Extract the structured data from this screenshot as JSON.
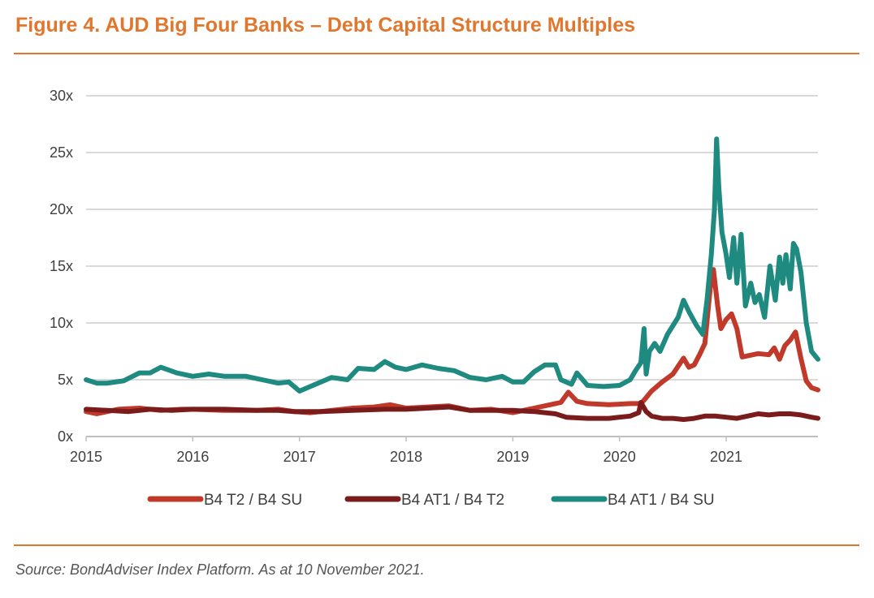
{
  "title": "Figure 4. AUD Big Four Banks – Debt Capital Structure Multiples",
  "source": "Source: BondAdviser Index Platform. As at 10 November 2021.",
  "colors": {
    "accent": "#e0772e",
    "grid": "#d9d9d9",
    "axis_text": "#404040"
  },
  "chart_data": {
    "type": "line",
    "title": "Figure 4. AUD Big Four Banks – Debt Capital Structure Multiples",
    "xlabel": "",
    "ylabel": "",
    "xlim": [
      2015.0,
      2021.86
    ],
    "ylim": [
      0,
      30
    ],
    "x_ticks": [
      2015,
      2016,
      2017,
      2018,
      2019,
      2020,
      2021
    ],
    "x_tick_labels": [
      "2015",
      "2016",
      "2017",
      "2018",
      "2019",
      "2020",
      "2021"
    ],
    "y_ticks": [
      0,
      5,
      10,
      15,
      20,
      25,
      30
    ],
    "y_tick_labels": [
      "0x",
      "5x",
      "10x",
      "15x",
      "20x",
      "25x",
      "30x"
    ],
    "grid": true,
    "legend_position": "bottom",
    "series": [
      {
        "name": "B4 T2 / B4 SU",
        "color": "#c0392b",
        "x": [
          2015.0,
          2015.1,
          2015.2,
          2015.3,
          2015.5,
          2015.7,
          2015.9,
          2016.0,
          2016.3,
          2016.6,
          2016.8,
          2016.95,
          2017.1,
          2017.3,
          2017.5,
          2017.7,
          2017.85,
          2018.0,
          2018.2,
          2018.4,
          2018.6,
          2018.8,
          2019.0,
          2019.2,
          2019.35,
          2019.45,
          2019.52,
          2019.6,
          2019.7,
          2019.9,
          2020.1,
          2020.2,
          2020.23,
          2020.3,
          2020.4,
          2020.5,
          2020.6,
          2020.65,
          2020.7,
          2020.75,
          2020.8,
          2020.85,
          2020.88,
          2020.92,
          2020.95,
          2021.0,
          2021.05,
          2021.1,
          2021.15,
          2021.2,
          2021.3,
          2021.4,
          2021.45,
          2021.5,
          2021.55,
          2021.6,
          2021.65,
          2021.7,
          2021.75,
          2021.8,
          2021.86
        ],
        "values": [
          2.2,
          2.0,
          2.2,
          2.4,
          2.5,
          2.3,
          2.4,
          2.4,
          2.3,
          2.3,
          2.4,
          2.2,
          2.1,
          2.3,
          2.5,
          2.6,
          2.8,
          2.5,
          2.6,
          2.7,
          2.3,
          2.4,
          2.1,
          2.5,
          2.8,
          3.0,
          3.9,
          3.1,
          2.9,
          2.8,
          2.9,
          2.9,
          3.2,
          4.0,
          4.8,
          5.5,
          6.9,
          6.1,
          6.3,
          7.2,
          8.2,
          13.0,
          14.7,
          11.5,
          9.5,
          10.3,
          10.8,
          9.5,
          7.0,
          7.1,
          7.3,
          7.2,
          7.8,
          6.8,
          8.0,
          8.5,
          9.2,
          6.9,
          4.9,
          4.3,
          4.1
        ]
      },
      {
        "name": "B4 AT1 / B4 T2",
        "color": "#7b1c1c",
        "x": [
          2015.0,
          2015.2,
          2015.4,
          2015.6,
          2015.8,
          2016.0,
          2016.3,
          2016.6,
          2016.8,
          2016.95,
          2017.2,
          2017.5,
          2017.8,
          2018.0,
          2018.2,
          2018.4,
          2018.6,
          2018.8,
          2019.0,
          2019.2,
          2019.4,
          2019.5,
          2019.7,
          2019.9,
          2020.1,
          2020.18,
          2020.2,
          2020.25,
          2020.3,
          2020.4,
          2020.5,
          2020.6,
          2020.7,
          2020.8,
          2020.9,
          2021.0,
          2021.1,
          2021.2,
          2021.3,
          2021.4,
          2021.5,
          2021.6,
          2021.7,
          2021.8,
          2021.86
        ],
        "values": [
          2.4,
          2.3,
          2.2,
          2.4,
          2.3,
          2.4,
          2.4,
          2.3,
          2.3,
          2.2,
          2.2,
          2.3,
          2.4,
          2.4,
          2.5,
          2.6,
          2.3,
          2.3,
          2.3,
          2.2,
          2.0,
          1.7,
          1.6,
          1.6,
          1.8,
          2.1,
          3.0,
          2.2,
          1.8,
          1.6,
          1.6,
          1.5,
          1.6,
          1.8,
          1.8,
          1.7,
          1.6,
          1.8,
          2.0,
          1.9,
          2.0,
          2.0,
          1.9,
          1.7,
          1.6
        ]
      },
      {
        "name": "B4 AT1 / B4 SU",
        "color": "#1e8a80",
        "x": [
          2015.0,
          2015.1,
          2015.2,
          2015.35,
          2015.5,
          2015.6,
          2015.7,
          2015.85,
          2016.0,
          2016.15,
          2016.3,
          2016.5,
          2016.65,
          2016.8,
          2016.9,
          2017.0,
          2017.15,
          2017.3,
          2017.45,
          2017.55,
          2017.7,
          2017.8,
          2017.9,
          2018.0,
          2018.15,
          2018.3,
          2018.45,
          2018.6,
          2018.75,
          2018.9,
          2019.0,
          2019.1,
          2019.2,
          2019.3,
          2019.4,
          2019.45,
          2019.55,
          2019.6,
          2019.7,
          2019.85,
          2020.0,
          2020.1,
          2020.15,
          2020.2,
          2020.23,
          2020.25,
          2020.28,
          2020.33,
          2020.38,
          2020.45,
          2020.55,
          2020.6,
          2020.65,
          2020.72,
          2020.78,
          2020.82,
          2020.86,
          2020.89,
          2020.91,
          2020.93,
          2020.96,
          2021.0,
          2021.03,
          2021.07,
          2021.1,
          2021.14,
          2021.18,
          2021.23,
          2021.27,
          2021.31,
          2021.36,
          2021.41,
          2021.46,
          2021.5,
          2021.53,
          2021.56,
          2021.6,
          2021.63,
          2021.66,
          2021.7,
          2021.75,
          2021.8,
          2021.86
        ],
        "values": [
          5.0,
          4.7,
          4.7,
          4.9,
          5.6,
          5.6,
          6.1,
          5.6,
          5.3,
          5.5,
          5.3,
          5.3,
          5.0,
          4.7,
          4.8,
          4.0,
          4.6,
          5.2,
          5.0,
          6.0,
          5.9,
          6.6,
          6.1,
          5.9,
          6.3,
          6.0,
          5.8,
          5.2,
          5.0,
          5.3,
          4.8,
          4.8,
          5.7,
          6.3,
          6.3,
          5.0,
          4.6,
          5.6,
          4.5,
          4.4,
          4.5,
          5.0,
          5.8,
          6.5,
          9.5,
          5.5,
          7.5,
          8.2,
          7.5,
          9.0,
          10.5,
          12.0,
          11.0,
          9.8,
          9.0,
          12.0,
          16.0,
          20.0,
          26.2,
          22.0,
          18.0,
          16.0,
          14.0,
          17.5,
          13.5,
          17.8,
          11.5,
          13.5,
          11.8,
          12.5,
          10.5,
          15.0,
          12.0,
          15.8,
          13.5,
          16.0,
          13.0,
          17.0,
          16.5,
          14.5,
          10.0,
          7.5,
          6.8
        ]
      }
    ]
  }
}
